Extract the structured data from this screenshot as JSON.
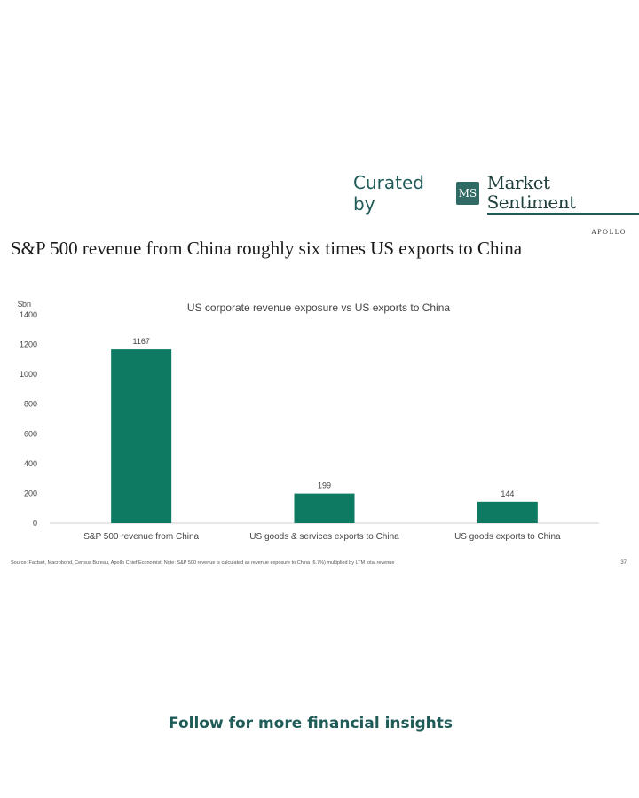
{
  "header": {
    "curated_label": "Curated by",
    "logo_text": "MS",
    "brand_name": "Market Sentiment"
  },
  "apollo_label": "APOLLO",
  "slide_title": "S&P 500 revenue from China roughly six times US exports to China",
  "source_note": "Source: Factset, Macrobond, Census Bureau, Apollo Chief Economist. Note: S&P 500 revenue is calculated as revenue exposure to China (6.7%) multiplied by LTM total revenue",
  "page_number": "37",
  "footer_cta": "Follow for more financial insights",
  "colors": {
    "bar": "#0e7a62",
    "brand": "#1f5b57"
  },
  "chart_data": {
    "type": "bar",
    "title": "US corporate revenue exposure vs US exports to China",
    "ylabel": "$bn",
    "categories": [
      "S&P 500 revenue from China",
      "US goods & services exports to China",
      "US goods exports to China"
    ],
    "values": [
      1167,
      199,
      144
    ],
    "data_labels": [
      "1167",
      "199",
      "144"
    ],
    "ylim": [
      0,
      1400
    ],
    "yticks": [
      0,
      200,
      400,
      600,
      800,
      1000,
      1200,
      1400
    ],
    "grid": false,
    "legend": "none"
  }
}
